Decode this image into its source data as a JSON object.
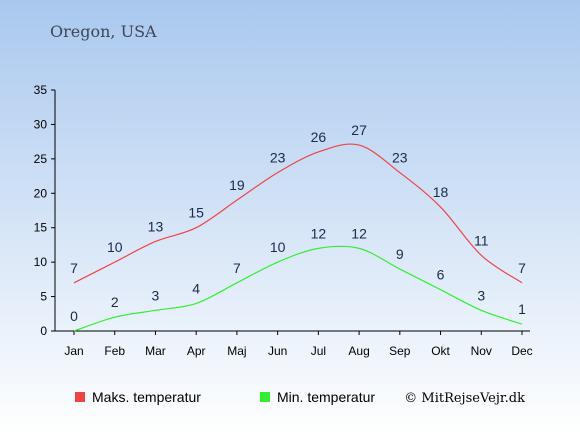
{
  "title": "Oregon, USA",
  "credit": "© MitRejseVejr.dk",
  "colors": {
    "background_top": "#a9c8ee",
    "background_bottom": "#ffffff",
    "max_series": "#ee4444",
    "min_series": "#33ee33",
    "data_label": "#1a2a4a"
  },
  "chart_data": {
    "type": "line",
    "categories": [
      "Jan",
      "Feb",
      "Mar",
      "Apr",
      "Maj",
      "Jun",
      "Jul",
      "Aug",
      "Sep",
      "Okt",
      "Nov",
      "Dec"
    ],
    "series": [
      {
        "name": "Maks. temperatur",
        "values": [
          7,
          10,
          13,
          15,
          19,
          23,
          26,
          27,
          23,
          18,
          11,
          7
        ]
      },
      {
        "name": "Min. temperatur",
        "values": [
          0,
          2,
          3,
          4,
          7,
          10,
          12,
          12,
          9,
          6,
          3,
          1
        ]
      }
    ],
    "ylim": [
      0,
      35
    ],
    "yticks": [
      0,
      5,
      10,
      15,
      20,
      25,
      30,
      35
    ],
    "grid": false,
    "legend_position": "bottom"
  }
}
